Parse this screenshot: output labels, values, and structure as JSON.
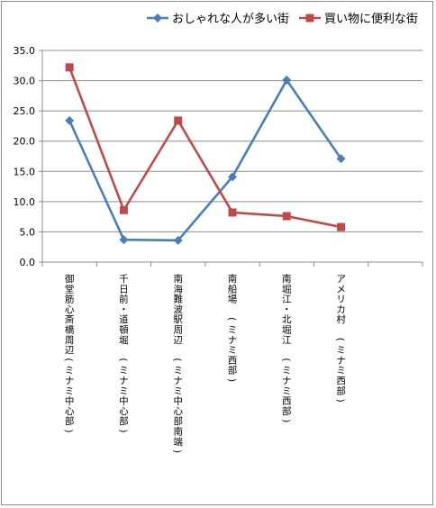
{
  "chart_data": {
    "type": "line",
    "categories": [
      "御堂筋心斎橋周辺(ミナミ中心部)",
      "千日前・道頓堀　(ミナミ中心部)",
      "南海難波駅周辺　(ミナミ中心部南端)",
      "南船場　(ミナミ西部)",
      "南堀江・北堀江　(ミナミ西部)",
      "アメリカ村　(ミナミ西部)",
      ""
    ],
    "series": [
      {
        "name": "おしゃれな人が多い街",
        "values": [
          23.4,
          3.7,
          3.6,
          14.1,
          30.1,
          17.1,
          null
        ],
        "color": "#4a7ebb",
        "marker": "diamond"
      },
      {
        "name": "買い物に便利な街",
        "values": [
          32.2,
          8.6,
          23.4,
          8.2,
          7.6,
          5.8,
          null
        ],
        "color": "#be4b48",
        "marker": "square"
      }
    ],
    "ylim": [
      0,
      35
    ],
    "yticks": [
      "0.0",
      "5.0",
      "10.0",
      "15.0",
      "20.0",
      "25.0",
      "30.0",
      "35.0"
    ],
    "grid": true,
    "legend_position": "top"
  }
}
